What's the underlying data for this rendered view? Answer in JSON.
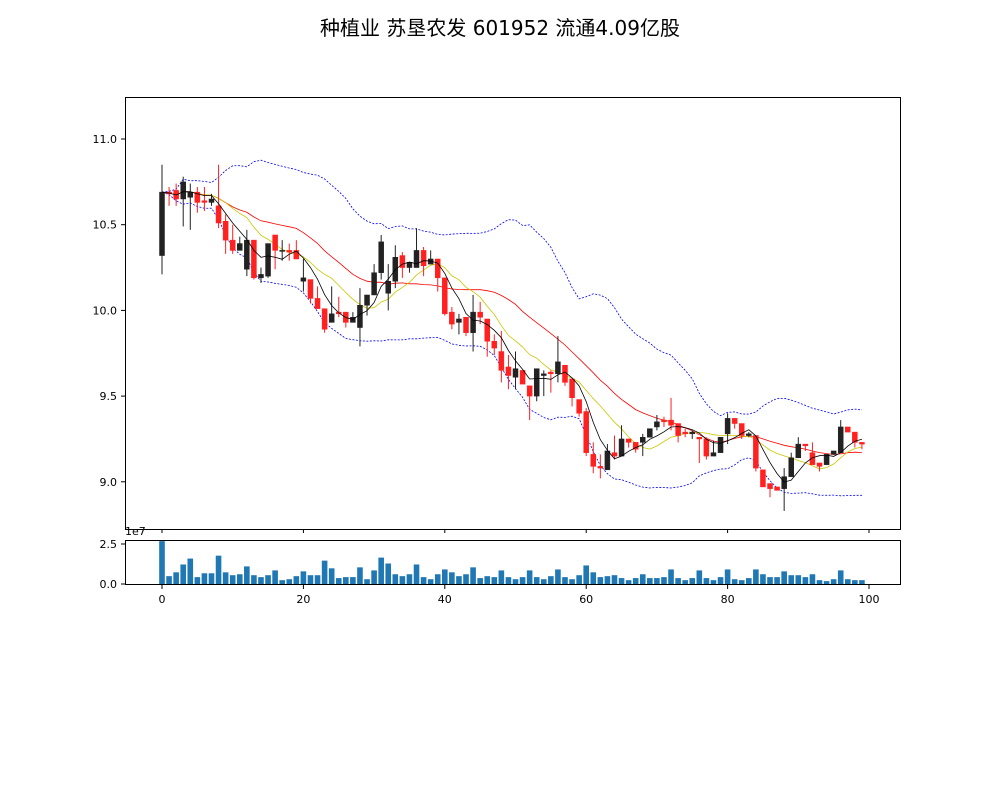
{
  "title": "种植业 苏垦农发 601952 流通4.09亿股",
  "chart_data": {
    "type": "candlestick",
    "title": "种植业 苏垦农发 601952 流通4.09亿股",
    "ylim": [
      8.75,
      11.25
    ],
    "y_ticks": [
      "9.0",
      "9.5",
      "10.0",
      "10.5",
      "11.0"
    ],
    "x_ticks": [
      "0",
      "20",
      "40",
      "60",
      "80",
      "100"
    ],
    "xlim": [
      -5,
      104
    ],
    "volume_ticks": [
      "0.0",
      "2.5"
    ],
    "volume_scale_label": "1e7",
    "volume_ylim": [
      0,
      2.8
    ],
    "colors": {
      "up": "#222222",
      "down": "#ff2020",
      "ma5": "#000000",
      "ma10": "#c8c800",
      "ma20": "#ff0000",
      "boll": "#0000ff",
      "volume": "#1f77b4"
    },
    "ohlc": [
      [
        10.32,
        10.85,
        10.21,
        10.69
      ],
      [
        10.69,
        10.72,
        10.61,
        10.68
      ],
      [
        10.7,
        10.74,
        10.61,
        10.65
      ],
      [
        10.65,
        10.78,
        10.49,
        10.75
      ],
      [
        10.66,
        10.74,
        10.47,
        10.69
      ],
      [
        10.69,
        10.72,
        10.57,
        10.63
      ],
      [
        10.64,
        10.72,
        10.58,
        10.63
      ],
      [
        10.63,
        10.68,
        10.61,
        10.65
      ],
      [
        10.61,
        10.85,
        10.48,
        10.51
      ],
      [
        10.52,
        10.56,
        10.33,
        10.41
      ],
      [
        10.41,
        10.5,
        10.33,
        10.35
      ],
      [
        10.35,
        10.43,
        10.35,
        10.39
      ],
      [
        10.24,
        10.47,
        10.2,
        10.41
      ],
      [
        10.41,
        10.41,
        10.18,
        10.19
      ],
      [
        10.19,
        10.25,
        10.16,
        10.21
      ],
      [
        10.2,
        10.39,
        10.19,
        10.39
      ],
      [
        10.44,
        10.44,
        10.24,
        10.35
      ],
      [
        10.35,
        10.41,
        10.29,
        10.35
      ],
      [
        10.35,
        10.39,
        10.29,
        10.34
      ],
      [
        10.35,
        10.41,
        10.3,
        10.3
      ],
      [
        10.17,
        10.3,
        10.11,
        10.19
      ],
      [
        10.18,
        10.18,
        10.04,
        10.07
      ],
      [
        10.07,
        10.14,
        10.01,
        10.01
      ],
      [
        10.01,
        10.01,
        9.87,
        9.89
      ],
      [
        9.93,
        10.14,
        9.93,
        9.98
      ],
      [
        9.99,
        10.08,
        9.96,
        9.98
      ],
      [
        9.99,
        9.99,
        9.9,
        9.93
      ],
      [
        9.93,
        9.99,
        9.93,
        9.96
      ],
      [
        9.9,
        10.13,
        9.79,
        10.03
      ],
      [
        10.03,
        10.09,
        9.97,
        10.09
      ],
      [
        10.09,
        10.27,
        10.09,
        10.22
      ],
      [
        10.22,
        10.44,
        10.18,
        10.4
      ],
      [
        10.1,
        10.27,
        10.0,
        10.17
      ],
      [
        10.17,
        10.38,
        10.13,
        10.31
      ],
      [
        10.32,
        10.34,
        10.19,
        10.25
      ],
      [
        10.25,
        10.28,
        10.22,
        10.28
      ],
      [
        10.25,
        10.48,
        10.25,
        10.35
      ],
      [
        10.35,
        10.37,
        10.2,
        10.26
      ],
      [
        10.27,
        10.35,
        10.27,
        10.3
      ],
      [
        10.3,
        10.3,
        10.11,
        10.19
      ],
      [
        10.19,
        10.19,
        9.97,
        9.98
      ],
      [
        9.99,
        10.02,
        9.89,
        9.92
      ],
      [
        9.93,
        9.98,
        9.86,
        9.95
      ],
      [
        9.96,
        9.96,
        9.85,
        9.87
      ],
      [
        9.87,
        10.09,
        9.76,
        9.99
      ],
      [
        9.99,
        10.05,
        9.92,
        9.96
      ],
      [
        9.95,
        9.95,
        9.73,
        9.82
      ],
      [
        9.82,
        9.86,
        9.74,
        9.78
      ],
      [
        9.76,
        9.88,
        9.58,
        9.65
      ],
      [
        9.67,
        9.74,
        9.54,
        9.62
      ],
      [
        9.61,
        9.76,
        9.54,
        9.66
      ],
      [
        9.65,
        9.65,
        9.57,
        9.57
      ],
      [
        9.56,
        9.56,
        9.36,
        9.5
      ],
      [
        9.5,
        9.66,
        9.47,
        9.66
      ],
      [
        9.62,
        9.65,
        9.5,
        9.63
      ],
      [
        9.64,
        9.65,
        9.52,
        9.63
      ],
      [
        9.63,
        9.85,
        9.58,
        9.7
      ],
      [
        9.68,
        9.68,
        9.56,
        9.58
      ],
      [
        9.6,
        9.6,
        9.44,
        9.49
      ],
      [
        9.48,
        9.48,
        9.38,
        9.4
      ],
      [
        9.41,
        9.43,
        9.15,
        9.17
      ],
      [
        9.16,
        9.23,
        9.05,
        9.09
      ],
      [
        9.09,
        9.16,
        9.02,
        9.08
      ],
      [
        9.07,
        9.22,
        9.07,
        9.18
      ],
      [
        9.17,
        9.27,
        9.13,
        9.15
      ],
      [
        9.15,
        9.33,
        9.15,
        9.25
      ],
      [
        9.25,
        9.25,
        9.2,
        9.23
      ],
      [
        9.23,
        9.23,
        9.17,
        9.19
      ],
      [
        9.23,
        9.28,
        9.15,
        9.26
      ],
      [
        9.26,
        9.31,
        9.26,
        9.31
      ],
      [
        9.32,
        9.39,
        9.3,
        9.35
      ],
      [
        9.36,
        9.38,
        9.32,
        9.35
      ],
      [
        9.36,
        9.49,
        9.3,
        9.33
      ],
      [
        9.34,
        9.34,
        9.23,
        9.27
      ],
      [
        9.29,
        9.31,
        9.26,
        9.28
      ],
      [
        9.28,
        9.3,
        9.25,
        9.29
      ],
      [
        9.26,
        9.26,
        9.11,
        9.25
      ],
      [
        9.25,
        9.26,
        9.13,
        9.15
      ],
      [
        9.15,
        9.24,
        9.15,
        9.17
      ],
      [
        9.17,
        9.26,
        9.17,
        9.26
      ],
      [
        9.28,
        9.4,
        9.22,
        9.37
      ],
      [
        9.37,
        9.37,
        9.31,
        9.34
      ],
      [
        9.34,
        9.34,
        9.25,
        9.27
      ],
      [
        9.27,
        9.29,
        9.26,
        9.28
      ],
      [
        9.27,
        9.27,
        9.06,
        9.08
      ],
      [
        9.07,
        9.07,
        8.97,
        8.97
      ],
      [
        8.99,
        8.99,
        8.91,
        8.96
      ],
      [
        8.97,
        8.97,
        8.95,
        8.95
      ],
      [
        8.96,
        9.08,
        8.83,
        9.03
      ],
      [
        9.03,
        9.17,
        9.03,
        9.14
      ],
      [
        9.14,
        9.26,
        9.14,
        9.22
      ],
      [
        9.22,
        9.22,
        9.18,
        9.21
      ],
      [
        9.17,
        9.23,
        9.1,
        9.1
      ],
      [
        9.11,
        9.11,
        9.06,
        9.09
      ],
      [
        9.1,
        9.16,
        9.1,
        9.16
      ],
      [
        9.16,
        9.18,
        9.16,
        9.18
      ],
      [
        9.17,
        9.36,
        9.17,
        9.32
      ],
      [
        9.32,
        9.32,
        9.29,
        9.29
      ],
      [
        9.29,
        9.29,
        9.2,
        9.23
      ],
      [
        9.23,
        9.23,
        9.19,
        9.22
      ]
    ],
    "volume": [
      2.68,
      0.49,
      0.73,
      1.22,
      1.59,
      0.43,
      0.67,
      0.67,
      1.77,
      0.73,
      0.55,
      0.61,
      1.1,
      0.55,
      0.43,
      0.55,
      0.85,
      0.24,
      0.3,
      0.49,
      0.79,
      0.55,
      0.55,
      1.46,
      0.98,
      0.37,
      0.43,
      0.43,
      1.04,
      0.3,
      0.85,
      1.65,
      1.28,
      0.61,
      0.49,
      0.61,
      1.22,
      0.43,
      0.3,
      0.61,
      0.91,
      0.73,
      0.49,
      0.61,
      1.04,
      0.37,
      0.49,
      0.43,
      0.85,
      0.43,
      0.3,
      0.43,
      0.85,
      0.43,
      0.3,
      0.49,
      0.91,
      0.43,
      0.3,
      0.55,
      1.16,
      0.73,
      0.43,
      0.49,
      0.55,
      0.37,
      0.24,
      0.37,
      0.61,
      0.37,
      0.37,
      0.43,
      0.91,
      0.37,
      0.24,
      0.37,
      0.85,
      0.37,
      0.24,
      0.43,
      0.91,
      0.3,
      0.24,
      0.37,
      0.91,
      0.61,
      0.43,
      0.43,
      0.79,
      0.55,
      0.55,
      0.43,
      0.61,
      0.24,
      0.18,
      0.3,
      0.85,
      0.3,
      0.24,
      0.24
    ]
  }
}
